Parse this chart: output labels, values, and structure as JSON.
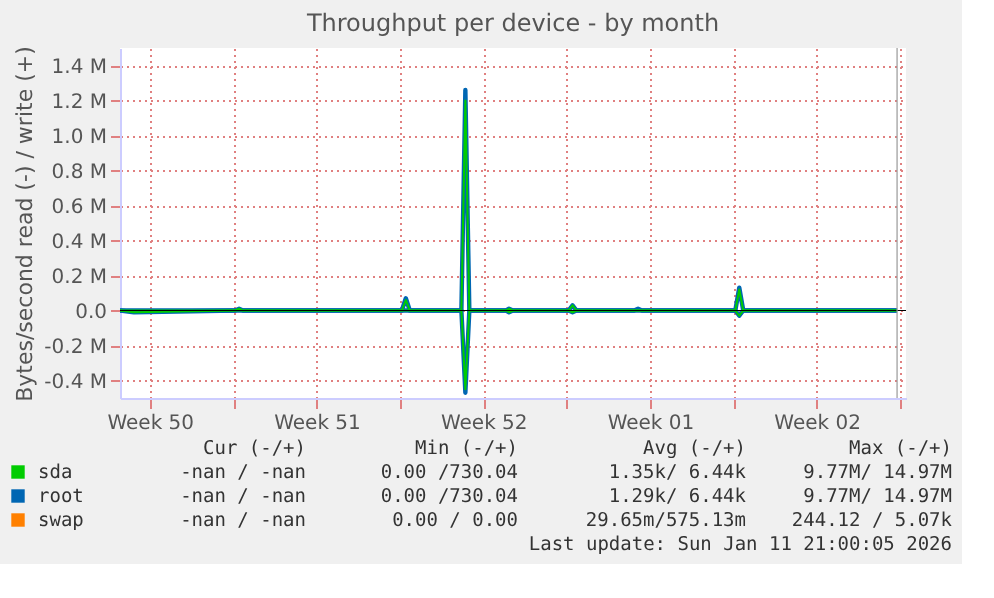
{
  "chart_data": {
    "type": "line",
    "title": "Throughput per device - by month",
    "ylabel": "Bytes/second read (-) / write (+)",
    "x": [
      "2025-12-10T06:00",
      "2025-12-10T20:00",
      "2025-12-15T02:00",
      "2025-12-15T06:00",
      "2025-12-15T10:00",
      "2025-12-22T02:00",
      "2025-12-22T06:00",
      "2025-12-22T10:00",
      "2025-12-24T14:00",
      "2025-12-24T18:00",
      "2025-12-24T22:00",
      "2025-12-26T11:00",
      "2025-12-26T14:00",
      "2025-12-26T18:00",
      "2025-12-29T02:00",
      "2025-12-29T06:00",
      "2025-12-29T10:00",
      "2025-12-31T20:00",
      "2026-01-01T00:00",
      "2026-01-01T04:00",
      "2026-01-05T02:00",
      "2026-01-05T06:00",
      "2026-01-05T10:00",
      "2026-01-11T21:00"
    ],
    "series": [
      {
        "name": "sda",
        "color": "#00cc00",
        "values": [
          0,
          0,
          0,
          0.01,
          0,
          0,
          0.06,
          0,
          0,
          1.2,
          0,
          0,
          0.01,
          0,
          0,
          0.03,
          0,
          0,
          0,
          0,
          0,
          0.12,
          0,
          0
        ]
      },
      {
        "color": "#00cc00",
        "values": [
          0,
          -0.01,
          0,
          0,
          0,
          0,
          0,
          0,
          0,
          -0.45,
          0,
          0,
          -0.01,
          0,
          0,
          -0.01,
          0,
          0,
          0,
          0,
          0,
          -0.03,
          0,
          0
        ]
      },
      {
        "name": "root",
        "color": "#0066b3",
        "values": [
          0,
          0,
          0,
          0.01,
          0,
          0,
          0.07,
          0,
          0,
          1.26,
          0,
          0,
          0.01,
          0,
          0,
          0.03,
          0,
          0,
          0.01,
          0,
          0,
          0.13,
          0,
          0
        ]
      },
      {
        "color": "#0066b3",
        "values": [
          0,
          -0.01,
          0,
          0,
          0,
          0,
          0,
          0,
          0,
          -0.47,
          0,
          0,
          -0.01,
          0,
          0,
          -0.01,
          0,
          0,
          0,
          0,
          0,
          -0.03,
          0,
          0
        ]
      },
      {
        "name": "swap",
        "color": "#ff8000",
        "values": [
          null,
          null,
          null,
          null,
          null,
          null,
          null,
          null,
          null,
          null,
          null,
          null,
          null,
          null,
          null,
          null,
          null,
          null,
          null,
          null,
          null,
          null,
          null,
          null
        ]
      }
    ],
    "xlim": [
      "2025-12-10T06:00",
      "2026-01-12T06:00"
    ],
    "xticks": [
      {
        "value": "2025-12-11T12:00",
        "label": "Week 50"
      },
      {
        "value": "2025-12-15",
        "label": null
      },
      {
        "value": "2025-12-18T12:00",
        "label": "Week 51"
      },
      {
        "value": "2025-12-22",
        "label": null
      },
      {
        "value": "2025-12-25T12:00",
        "label": "Week 52"
      },
      {
        "value": "2025-12-29",
        "label": null
      },
      {
        "value": "2026-01-01T12:00",
        "label": "Week 01"
      },
      {
        "value": "2026-01-05",
        "label": null
      },
      {
        "value": "2026-01-08T12:00",
        "label": "Week 02"
      },
      {
        "value": "2026-01-12",
        "label": null
      }
    ],
    "ylim": [
      -0.5,
      1.5
    ],
    "yticks": [
      {
        "value": -0.4,
        "label": "-0.4 M"
      },
      {
        "value": -0.2,
        "label": "-0.2 M"
      },
      {
        "value": 0,
        "label": "0.0"
      },
      {
        "value": 0.2,
        "label": "0.2 M"
      },
      {
        "value": 0.4,
        "label": "0.4 M"
      },
      {
        "value": 0.6,
        "label": "0.6 M"
      },
      {
        "value": 0.8,
        "label": "0.8 M"
      },
      {
        "value": 1.0,
        "label": "1.0 M"
      },
      {
        "value": 1.2,
        "label": "1.2 M"
      },
      {
        "value": 1.4,
        "label": "1.4 M"
      }
    ],
    "grid": true,
    "legend": "bottom",
    "ref_lines": [
      {
        "axis": "y",
        "value": 0,
        "color": "#000000"
      },
      {
        "axis": "x",
        "value": "2026-01-11T21:00",
        "color": "#999999"
      }
    ],
    "annotations": [
      "Cur (-/+)",
      "Min (-/+)",
      "Avg (-/+)",
      "Max (-/+)",
      "-nan /  -nan",
      "0.00 /730.04",
      "1.35k/  6.44k",
      "9.77M/ 14.97M",
      "-nan /  -nan",
      "0.00 /730.04",
      "1.29k/  6.44k",
      "9.77M/ 14.97M",
      "-nan /  -nan",
      "0.00 /  0.00",
      "29.65m/575.13m",
      "244.12 /  5.07k",
      "Last update: Sun Jan 11 21:00:05 2026"
    ]
  }
}
